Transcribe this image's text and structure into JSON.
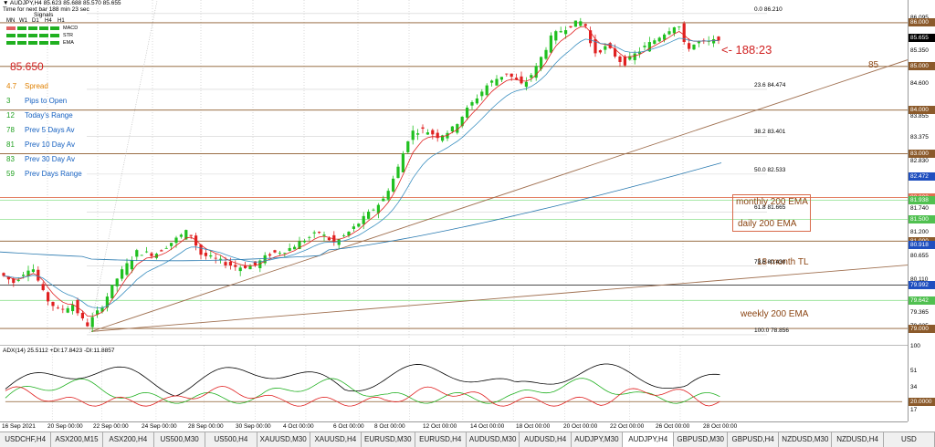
{
  "header": {
    "title_line": "▼ AUDJPY,H4  85.623 85.688 85.570 85.655",
    "time_line": "Time for next bar 188 min 23 sec",
    "signals_label": "Signals"
  },
  "signals": {
    "timeframes": [
      "MN",
      "W1",
      "D1",
      "H4",
      "H1"
    ],
    "rows": [
      {
        "label": "MACD",
        "colors": [
          "#e06060",
          "#20b020",
          "#20b020",
          "#20b020",
          "#20b020"
        ]
      },
      {
        "label": "STR",
        "colors": [
          "#20b020",
          "#20b020",
          "#20b020",
          "#20b020",
          "#20b020"
        ]
      },
      {
        "label": "EMA",
        "colors": [
          "#20b020",
          "#20b020",
          "#20b020",
          "#20b020",
          "#20b020"
        ]
      }
    ]
  },
  "price_big": "85.650",
  "stats": [
    {
      "value": "4.7",
      "label": "Spread",
      "color": "#e08000"
    },
    {
      "value": "3",
      "label": "Pips to Open",
      "color": "#1560c0"
    },
    {
      "value": "12",
      "label": "Today's Range",
      "color": "#1560c0"
    },
    {
      "value": "78",
      "label": "Prev 5 Days Av",
      "color": "#1560c0"
    },
    {
      "value": "81",
      "label": "Prev 10 Day Av",
      "color": "#1560c0"
    },
    {
      "value": "83",
      "label": "Prev 30 Day Av",
      "color": "#1560c0"
    },
    {
      "value": "59",
      "label": "Prev Days Range",
      "color": "#1560c0"
    }
  ],
  "countdown": "<- 188:23",
  "annotations": {
    "level_85": "85",
    "monthly_ema": "monthly 200 EMA",
    "daily_ema": "daily 200 EMA",
    "month_tl": "18-month TL",
    "weekly_ema": "weekly 200 EMA"
  },
  "fib_levels": [
    {
      "label": "0.0  86.210",
      "price": 86.21
    },
    {
      "label": "23.6  84.474",
      "price": 84.474
    },
    {
      "label": "38.2  83.401",
      "price": 83.401
    },
    {
      "label": "50.0  82.533",
      "price": 82.533
    },
    {
      "label": "61.8  81.665",
      "price": 81.665
    },
    {
      "label": "78.6  80.430",
      "price": 80.43
    },
    {
      "label": "100.0  78.856",
      "price": 78.856
    }
  ],
  "price_axis": {
    "labels": [
      "86.095",
      "85.655",
      "85.350",
      "84.600",
      "83.855",
      "83.375",
      "82.830",
      "82.485",
      "81.740",
      "81.200",
      "80.655",
      "80.110",
      "79.365",
      "79.035"
    ],
    "tags": [
      {
        "text": "86.000",
        "color": "#8b5a2b"
      },
      {
        "text": "85.655",
        "color": "#000000"
      },
      {
        "text": "85.000",
        "color": "#8b5a2b"
      },
      {
        "text": "84.000",
        "color": "#8b5a2b"
      },
      {
        "text": "83.000",
        "color": "#8b5a2b"
      },
      {
        "text": "82.472",
        "color": "#1f4fbf"
      },
      {
        "text": "82.000",
        "color": "#e07050"
      },
      {
        "text": "81.938",
        "color": "#50c050"
      },
      {
        "text": "81.500",
        "color": "#50c050"
      },
      {
        "text": "81.000",
        "color": "#8b5a2b"
      },
      {
        "text": "80.918",
        "color": "#1f4fbf"
      },
      {
        "text": "79.992",
        "color": "#1f4fbf"
      },
      {
        "text": "79.642",
        "color": "#50c050"
      },
      {
        "text": "79.000",
        "color": "#8b5a2b"
      }
    ]
  },
  "indicator": {
    "header": "ADX(14) 25.5112 +DI:17.8423 -DI:11.8857",
    "axis_labels": [
      "100",
      "51",
      "34",
      "17"
    ],
    "tag": "20.0000"
  },
  "time_axis": [
    "16 Sep 2021",
    "20 Sep 00:00",
    "22 Sep 00:00",
    "24 Sep 00:00",
    "28 Sep 00:00",
    "30 Sep 00:00",
    "4 Oct 00:00",
    "6 Oct 00:00",
    "8 Oct 00:00",
    "12 Oct 00:00",
    "14 Oct 00:00",
    "18 Oct 00:00",
    "20 Oct 00:00",
    "22 Oct 00:00",
    "26 Oct 00:00",
    "28 Oct 00:00"
  ],
  "tabs": [
    "USDCHF,H4",
    "ASX200,M15",
    "ASX200,H4",
    "US500,M30",
    "US500,H4",
    "XAUUSD,M30",
    "XAUUSD,H4",
    "EURUSD,M30",
    "EURUSD,H4",
    "AUDUSD,M30",
    "AUDUSD,H4",
    "AUDJPY,M30",
    "AUDJPY,H4",
    "GBPUSD,M30",
    "GBPUSD,H4",
    "NZDUSD,M30",
    "NZDUSD,H4",
    "USD"
  ],
  "active_tab": "AUDJPY,H4",
  "colors": {
    "bull": "#20c020",
    "bear": "#e02020",
    "ema_fast": "#e02020",
    "ema_slow": "#3a8fc0",
    "ema_long": "#2a7ab0",
    "level": "#8b5a2b",
    "trend": "#a07050"
  }
}
